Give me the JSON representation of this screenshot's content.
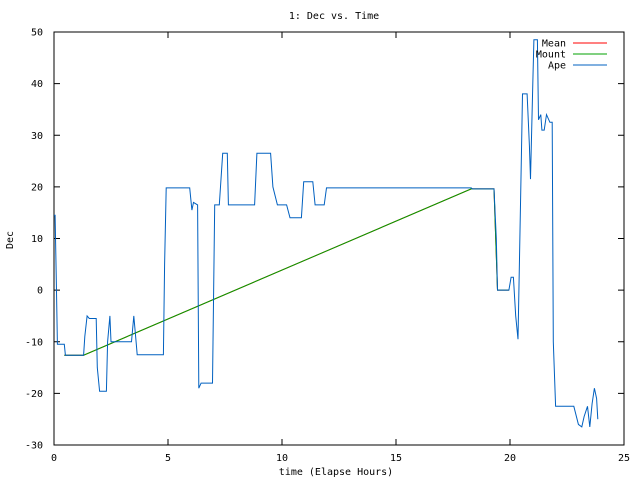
{
  "chart_data": {
    "type": "line",
    "title": "1: Dec vs. Time",
    "xlabel": "time (Elapse Hours)",
    "ylabel": "Dec",
    "xlim": [
      0,
      25
    ],
    "ylim": [
      -30,
      50
    ],
    "x_ticks": [
      0,
      5,
      10,
      15,
      20,
      25
    ],
    "y_ticks": [
      -30,
      -20,
      -10,
      0,
      10,
      20,
      30,
      40,
      50
    ],
    "grid": false,
    "legend_position": "top-right",
    "series": [
      {
        "name": "Mean",
        "color": "#ff0000",
        "points": [
          [
            0.45,
            -12.6
          ],
          [
            1.3,
            -12.6
          ],
          [
            18.3,
            19.6
          ],
          [
            19.3,
            19.6
          ],
          [
            19.45,
            0.0
          ],
          [
            19.95,
            0.0
          ]
        ]
      },
      {
        "name": "Mount",
        "color": "#00a000",
        "points": [
          [
            0.45,
            -12.6
          ],
          [
            1.3,
            -12.6
          ],
          [
            18.3,
            19.6
          ],
          [
            19.3,
            19.6
          ],
          [
            19.45,
            0.0
          ],
          [
            19.95,
            0.0
          ]
        ]
      },
      {
        "name": "Ape",
        "color": "#0060c0",
        "points": [
          [
            0.0,
            14.5
          ],
          [
            0.05,
            14.5
          ],
          [
            0.1,
            2.0
          ],
          [
            0.15,
            -10.5
          ],
          [
            0.45,
            -10.5
          ],
          [
            0.5,
            -12.6
          ],
          [
            1.3,
            -12.6
          ],
          [
            1.35,
            -9.0
          ],
          [
            1.45,
            -5.0
          ],
          [
            1.55,
            -5.5
          ],
          [
            1.85,
            -5.5
          ],
          [
            1.9,
            -15.0
          ],
          [
            2.0,
            -19.6
          ],
          [
            2.3,
            -19.6
          ],
          [
            2.35,
            -10.0
          ],
          [
            2.45,
            -5.0
          ],
          [
            2.5,
            -10.0
          ],
          [
            3.4,
            -10.0
          ],
          [
            3.5,
            -5.0
          ],
          [
            3.6,
            -10.0
          ],
          [
            3.65,
            -12.5
          ],
          [
            4.8,
            -12.5
          ],
          [
            4.85,
            5.0
          ],
          [
            4.92,
            19.8
          ],
          [
            5.95,
            19.8
          ],
          [
            6.05,
            15.5
          ],
          [
            6.12,
            17.0
          ],
          [
            6.3,
            16.5
          ],
          [
            6.35,
            -19.0
          ],
          [
            6.45,
            -18.0
          ],
          [
            6.95,
            -18.0
          ],
          [
            7.05,
            16.5
          ],
          [
            7.25,
            16.5
          ],
          [
            7.4,
            26.5
          ],
          [
            7.6,
            26.5
          ],
          [
            7.65,
            16.5
          ],
          [
            8.8,
            16.5
          ],
          [
            8.9,
            26.5
          ],
          [
            9.5,
            26.5
          ],
          [
            9.6,
            20.0
          ],
          [
            9.8,
            16.5
          ],
          [
            10.2,
            16.5
          ],
          [
            10.35,
            14.0
          ],
          [
            10.85,
            14.0
          ],
          [
            10.95,
            21.0
          ],
          [
            11.35,
            21.0
          ],
          [
            11.45,
            16.5
          ],
          [
            11.85,
            16.5
          ],
          [
            11.95,
            19.8
          ],
          [
            18.3,
            19.8
          ],
          [
            18.35,
            19.6
          ],
          [
            19.3,
            19.6
          ],
          [
            19.4,
            10.0
          ],
          [
            19.45,
            0.0
          ],
          [
            19.95,
            0.0
          ],
          [
            20.05,
            2.5
          ],
          [
            20.15,
            2.5
          ],
          [
            20.25,
            -5.0
          ],
          [
            20.35,
            -9.5
          ],
          [
            20.5,
            26.0
          ],
          [
            20.55,
            38.0
          ],
          [
            20.75,
            38.0
          ],
          [
            20.85,
            28.0
          ],
          [
            20.9,
            21.5
          ],
          [
            21.0,
            40.0
          ],
          [
            21.05,
            48.5
          ],
          [
            21.2,
            48.5
          ],
          [
            21.25,
            33.0
          ],
          [
            21.35,
            34.0
          ],
          [
            21.4,
            31.0
          ],
          [
            21.5,
            31.0
          ],
          [
            21.6,
            34.0
          ],
          [
            21.75,
            32.5
          ],
          [
            21.85,
            32.5
          ],
          [
            21.9,
            -10.0
          ],
          [
            22.0,
            -22.5
          ],
          [
            22.8,
            -22.5
          ],
          [
            23.0,
            -26.0
          ],
          [
            23.15,
            -26.5
          ],
          [
            23.25,
            -24.5
          ],
          [
            23.4,
            -22.5
          ],
          [
            23.5,
            -26.5
          ],
          [
            23.6,
            -22.0
          ],
          [
            23.7,
            -19.0
          ],
          [
            23.8,
            -21.0
          ],
          [
            23.85,
            -25.0
          ]
        ]
      }
    ]
  }
}
